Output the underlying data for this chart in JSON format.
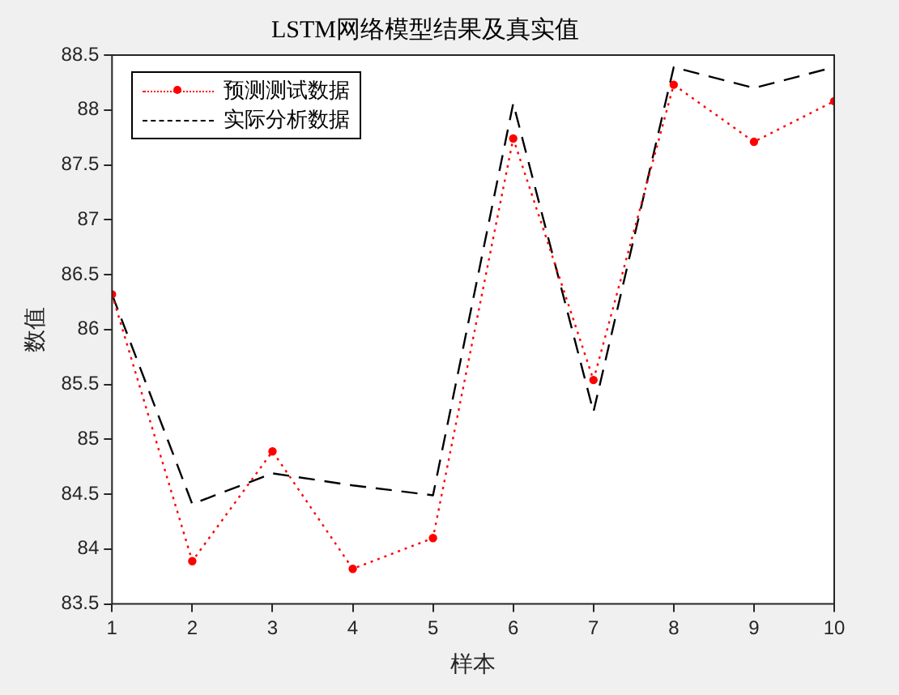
{
  "chart_data": {
    "type": "line",
    "title": "LSTM网络模型结果及真实值",
    "xlabel": "样本",
    "ylabel": "数值",
    "x": [
      1,
      2,
      3,
      4,
      5,
      6,
      7,
      8,
      9,
      10
    ],
    "series": [
      {
        "name": "预测测试数据",
        "color": "#ff0000",
        "marker": "circle",
        "line_style": "dotted",
        "values": [
          86.32,
          83.89,
          84.89,
          83.82,
          84.1,
          87.74,
          85.54,
          88.23,
          87.71,
          88.08
        ]
      },
      {
        "name": "实际分析数据",
        "color": "#000000",
        "marker": "none",
        "line_style": "dashed",
        "values": [
          86.32,
          84.41,
          84.69,
          84.58,
          84.49,
          88.06,
          85.25,
          88.39,
          88.2,
          88.39
        ]
      }
    ],
    "xlim": [
      1,
      10
    ],
    "xticks": [
      1,
      2,
      3,
      4,
      5,
      6,
      7,
      8,
      9,
      10
    ],
    "ylim": [
      83.5,
      88.5
    ],
    "yticks": [
      83.5,
      84,
      84.5,
      85,
      85.5,
      86,
      86.5,
      87,
      87.5,
      88,
      88.5
    ],
    "grid": false,
    "legend": "top left"
  }
}
